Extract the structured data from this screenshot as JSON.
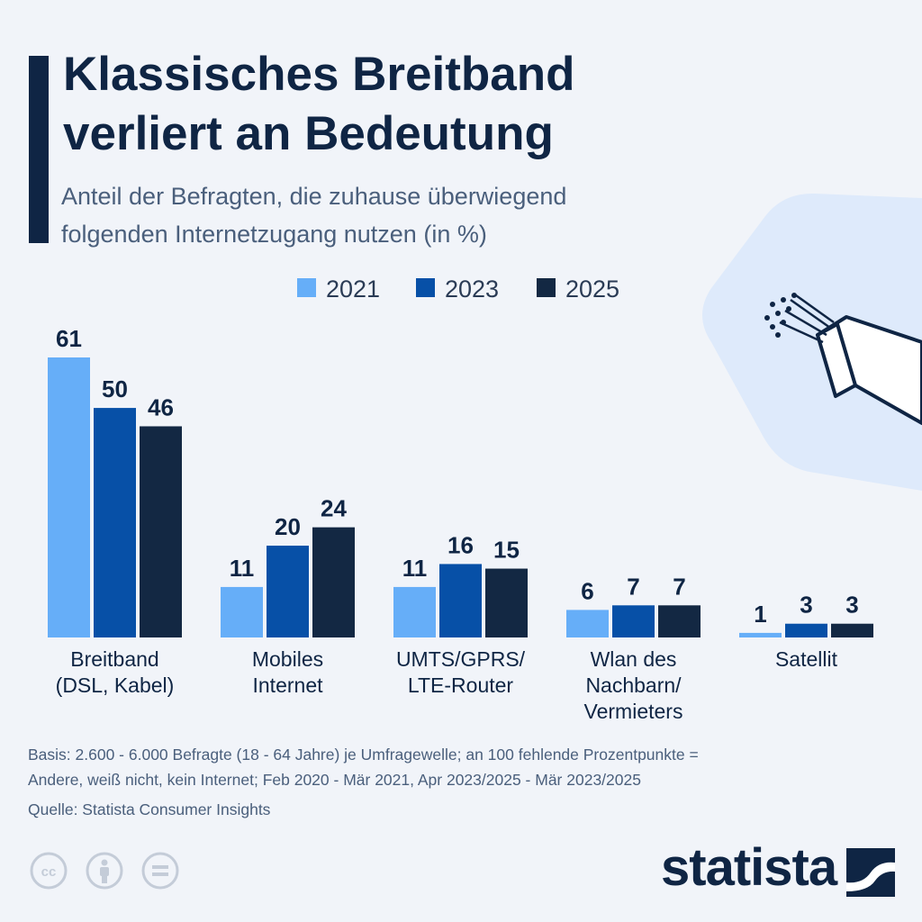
{
  "header": {
    "title_line1": "Klassisches Breitband",
    "title_line2": "verliert an Bedeutung",
    "subtitle_line1": "Anteil der Befragten, die zuhause überwiegend",
    "subtitle_line2": "folgenden Internetzugang nutzen (in %)"
  },
  "chart_data": {
    "type": "bar",
    "categories": [
      [
        "Breitband",
        "(DSL, Kabel)"
      ],
      [
        "Mobiles",
        "Internet"
      ],
      [
        "UMTS/GPRS/",
        "LTE-Router"
      ],
      [
        "Wlan des",
        "Nachbarn/",
        "Vermieters"
      ],
      [
        "Satellit"
      ]
    ],
    "series": [
      {
        "name": "2021",
        "color": "#66aef8",
        "values": [
          61,
          11,
          11,
          6,
          1
        ]
      },
      {
        "name": "2023",
        "color": "#0750a7",
        "values": [
          50,
          20,
          16,
          7,
          3
        ]
      },
      {
        "name": "2025",
        "color": "#132843",
        "values": [
          46,
          24,
          15,
          7,
          3
        ]
      }
    ],
    "ylim": [
      0,
      61
    ],
    "legend_position": "top",
    "grid": false,
    "xlabel": "",
    "ylabel": ""
  },
  "footer": {
    "note_line1": "Basis: 2.600 - 6.000 Befragte (18 - 64 Jahre) je Umfragewelle; an 100 fehlende Prozentpunkte =",
    "note_line2": "Andere, weiß nicht, kein Internet; Feb 2020 - Mär 2021, Apr 2023/2025 - Mär 2023/2025",
    "source": "Quelle: Statista Consumer Insights",
    "brand": "statista",
    "license_icons": [
      "cc-icon",
      "person-icon",
      "equals-icon"
    ]
  }
}
